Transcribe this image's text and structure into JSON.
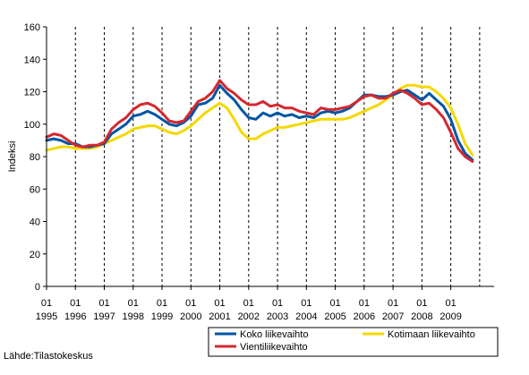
{
  "chart_data": {
    "type": "line",
    "title": "",
    "xlabel": "",
    "ylabel": "Indeksi",
    "ylim": [
      0,
      160
    ],
    "yticks": [
      0,
      20,
      40,
      60,
      80,
      100,
      120,
      140,
      160
    ],
    "xlim": [
      "1995-01",
      "2010-07"
    ],
    "x_tick_month_labels": [
      "01",
      "01",
      "01",
      "01",
      "01",
      "01",
      "01",
      "01",
      "01",
      "01",
      "01",
      "01",
      "01",
      "01",
      "01"
    ],
    "x_tick_year_labels": [
      "1995",
      "1996",
      "1997",
      "1998",
      "1999",
      "2000",
      "2001",
      "2002",
      "2003",
      "2004",
      "2005",
      "2006",
      "2007",
      "2008",
      "2009"
    ],
    "grid": {
      "vertical": "dashed",
      "horizontal": "none"
    },
    "legend_position": "bottom-right",
    "series": [
      {
        "name": "Koko liikevaihto",
        "color": "#0055a4",
        "points": [
          [
            "1995-01",
            90
          ],
          [
            "1995-04",
            91
          ],
          [
            "1995-07",
            90
          ],
          [
            "1995-10",
            88
          ],
          [
            "1996-01",
            88
          ],
          [
            "1996-04",
            86
          ],
          [
            "1996-07",
            86
          ],
          [
            "1996-10",
            87
          ],
          [
            "1997-01",
            88
          ],
          [
            "1997-04",
            94
          ],
          [
            "1997-07",
            97
          ],
          [
            "1997-10",
            100
          ],
          [
            "1998-01",
            105
          ],
          [
            "1998-04",
            106
          ],
          [
            "1998-07",
            108
          ],
          [
            "1998-10",
            106
          ],
          [
            "1999-01",
            103
          ],
          [
            "1999-04",
            100
          ],
          [
            "1999-07",
            99
          ],
          [
            "1999-10",
            101
          ],
          [
            "2000-01",
            105
          ],
          [
            "2000-04",
            112
          ],
          [
            "2000-07",
            113
          ],
          [
            "2000-10",
            116
          ],
          [
            "2001-01",
            124
          ],
          [
            "2001-04",
            119
          ],
          [
            "2001-07",
            115
          ],
          [
            "2001-10",
            109
          ],
          [
            "2002-01",
            104
          ],
          [
            "2002-04",
            103
          ],
          [
            "2002-07",
            107
          ],
          [
            "2002-10",
            105
          ],
          [
            "2003-01",
            107
          ],
          [
            "2003-04",
            105
          ],
          [
            "2003-07",
            106
          ],
          [
            "2003-10",
            104
          ],
          [
            "2004-01",
            105
          ],
          [
            "2004-04",
            104
          ],
          [
            "2004-07",
            107
          ],
          [
            "2004-10",
            108
          ],
          [
            "2005-01",
            107
          ],
          [
            "2005-04",
            108
          ],
          [
            "2005-07",
            110
          ],
          [
            "2005-10",
            114
          ],
          [
            "2006-01",
            118
          ],
          [
            "2006-04",
            118
          ],
          [
            "2006-07",
            117
          ],
          [
            "2006-10",
            117
          ],
          [
            "2007-01",
            118
          ],
          [
            "2007-04",
            120
          ],
          [
            "2007-07",
            121
          ],
          [
            "2007-10",
            118
          ],
          [
            "2008-01",
            115
          ],
          [
            "2008-04",
            119
          ],
          [
            "2008-07",
            115
          ],
          [
            "2008-10",
            111
          ],
          [
            "2009-01",
            103
          ],
          [
            "2009-04",
            90
          ],
          [
            "2009-07",
            82
          ],
          [
            "2009-10",
            78
          ]
        ]
      },
      {
        "name": "Kotimaan liikevaihto",
        "color": "#f5d800",
        "points": [
          [
            "1995-01",
            84
          ],
          [
            "1995-04",
            85
          ],
          [
            "1995-07",
            86
          ],
          [
            "1995-10",
            86
          ],
          [
            "1996-01",
            85
          ],
          [
            "1996-04",
            85
          ],
          [
            "1996-07",
            85
          ],
          [
            "1996-10",
            86
          ],
          [
            "1997-01",
            88
          ],
          [
            "1997-04",
            90
          ],
          [
            "1997-07",
            92
          ],
          [
            "1997-10",
            94
          ],
          [
            "1998-01",
            97
          ],
          [
            "1998-04",
            98
          ],
          [
            "1998-07",
            99
          ],
          [
            "1998-10",
            99
          ],
          [
            "1999-01",
            97
          ],
          [
            "1999-04",
            95
          ],
          [
            "1999-07",
            94
          ],
          [
            "1999-10",
            96
          ],
          [
            "2000-01",
            99
          ],
          [
            "2000-04",
            103
          ],
          [
            "2000-07",
            107
          ],
          [
            "2000-10",
            110
          ],
          [
            "2001-01",
            113
          ],
          [
            "2001-04",
            110
          ],
          [
            "2001-07",
            103
          ],
          [
            "2001-10",
            95
          ],
          [
            "2002-01",
            91
          ],
          [
            "2002-04",
            91
          ],
          [
            "2002-07",
            94
          ],
          [
            "2002-10",
            96
          ],
          [
            "2003-01",
            98
          ],
          [
            "2003-04",
            98
          ],
          [
            "2003-07",
            99
          ],
          [
            "2003-10",
            100
          ],
          [
            "2004-01",
            101
          ],
          [
            "2004-04",
            102
          ],
          [
            "2004-07",
            103
          ],
          [
            "2004-10",
            103
          ],
          [
            "2005-01",
            103
          ],
          [
            "2005-04",
            103
          ],
          [
            "2005-07",
            104
          ],
          [
            "2005-10",
            106
          ],
          [
            "2006-01",
            108
          ],
          [
            "2006-04",
            110
          ],
          [
            "2006-07",
            112
          ],
          [
            "2006-10",
            115
          ],
          [
            "2007-01",
            118
          ],
          [
            "2007-04",
            122
          ],
          [
            "2007-07",
            124
          ],
          [
            "2007-10",
            124
          ],
          [
            "2008-01",
            123
          ],
          [
            "2008-04",
            123
          ],
          [
            "2008-07",
            120
          ],
          [
            "2008-10",
            116
          ],
          [
            "2009-01",
            110
          ],
          [
            "2009-04",
            100
          ],
          [
            "2009-07",
            88
          ],
          [
            "2009-10",
            81
          ]
        ]
      },
      {
        "name": "Vientiliikevaihto",
        "color": "#d4282f",
        "points": [
          [
            "1995-01",
            92
          ],
          [
            "1995-04",
            94
          ],
          [
            "1995-07",
            93
          ],
          [
            "1995-10",
            90
          ],
          [
            "1996-01",
            87
          ],
          [
            "1996-04",
            86
          ],
          [
            "1996-07",
            87
          ],
          [
            "1996-10",
            87
          ],
          [
            "1997-01",
            89
          ],
          [
            "1997-04",
            97
          ],
          [
            "1997-07",
            101
          ],
          [
            "1997-10",
            104
          ],
          [
            "1998-01",
            109
          ],
          [
            "1998-04",
            112
          ],
          [
            "1998-07",
            113
          ],
          [
            "1998-10",
            111
          ],
          [
            "1999-01",
            107
          ],
          [
            "1999-04",
            102
          ],
          [
            "1999-07",
            101
          ],
          [
            "1999-10",
            102
          ],
          [
            "2000-01",
            108
          ],
          [
            "2000-04",
            114
          ],
          [
            "2000-07",
            116
          ],
          [
            "2000-10",
            120
          ],
          [
            "2001-01",
            127
          ],
          [
            "2001-04",
            122
          ],
          [
            "2001-07",
            119
          ],
          [
            "2001-10",
            115
          ],
          [
            "2002-01",
            112
          ],
          [
            "2002-04",
            112
          ],
          [
            "2002-07",
            114
          ],
          [
            "2002-10",
            111
          ],
          [
            "2003-01",
            112
          ],
          [
            "2003-04",
            110
          ],
          [
            "2003-07",
            110
          ],
          [
            "2003-10",
            108
          ],
          [
            "2004-01",
            107
          ],
          [
            "2004-04",
            106
          ],
          [
            "2004-07",
            110
          ],
          [
            "2004-10",
            109
          ],
          [
            "2005-01",
            109
          ],
          [
            "2005-04",
            110
          ],
          [
            "2005-07",
            111
          ],
          [
            "2005-10",
            114
          ],
          [
            "2006-01",
            117
          ],
          [
            "2006-04",
            118
          ],
          [
            "2006-07",
            116
          ],
          [
            "2006-10",
            116
          ],
          [
            "2007-01",
            119
          ],
          [
            "2007-04",
            121
          ],
          [
            "2007-07",
            119
          ],
          [
            "2007-10",
            116
          ],
          [
            "2008-01",
            112
          ],
          [
            "2008-04",
            113
          ],
          [
            "2008-07",
            109
          ],
          [
            "2008-10",
            104
          ],
          [
            "2009-01",
            95
          ],
          [
            "2009-04",
            85
          ],
          [
            "2009-07",
            80
          ],
          [
            "2009-10",
            77
          ]
        ]
      }
    ],
    "source": "Lähde:Tilastokeskus"
  }
}
